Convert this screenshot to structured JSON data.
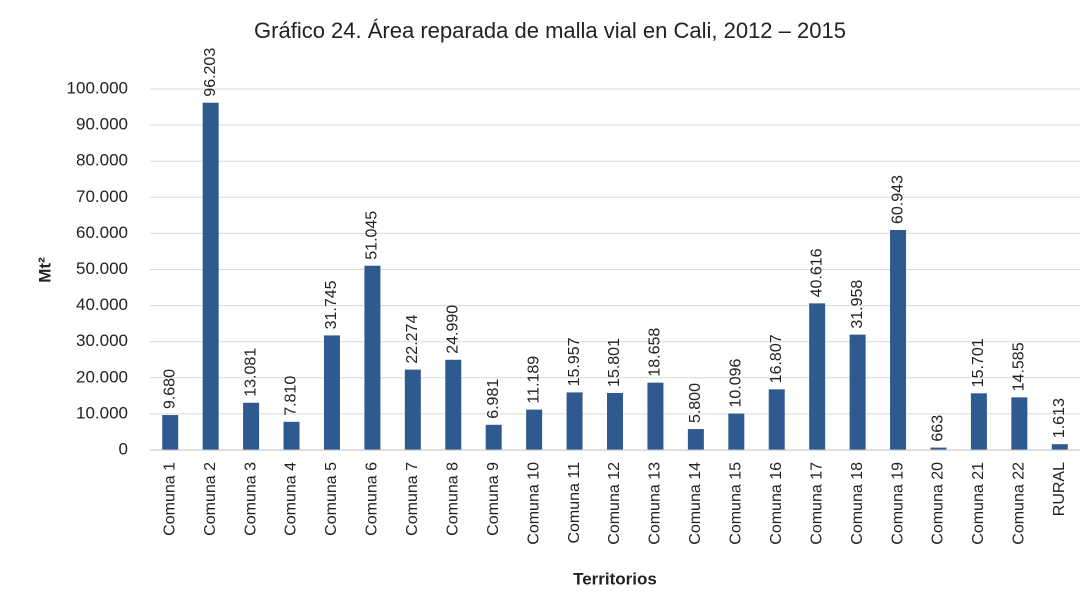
{
  "chart_data": {
    "type": "bar",
    "title": "Gráfico 24. Área reparada de malla vial en Cali, 2012 – 2015",
    "x_label": "Territorios",
    "y_label": "Mt²",
    "categories": [
      "Comuna 1",
      "Comuna 2",
      "Comuna 3",
      "Comuna 4",
      "Comuna 5",
      "Comuna 6",
      "Comuna 7",
      "Comuna 8",
      "Comuna 9",
      "Comuna 10",
      "Comuna 11",
      "Comuna 12",
      "Comuna 13",
      "Comuna 14",
      "Comuna 15",
      "Comuna 16",
      "Comuna 17",
      "Comuna 18",
      "Comuna 19",
      "Comuna 20",
      "Comuna 21",
      "Comuna 22",
      "RURAL"
    ],
    "values": [
      9680,
      96203,
      13081,
      7810,
      31745,
      51045,
      22274,
      24990,
      6981,
      11189,
      15957,
      15801,
      18658,
      5800,
      10096,
      16807,
      40616,
      31958,
      60943,
      663,
      15701,
      14585,
      1613
    ],
    "value_labels": [
      "9.680",
      "96.203",
      "13.081",
      "7.810",
      "31.745",
      "51.045",
      "22.274",
      "24.990",
      "6.981",
      "11.189",
      "15.957",
      "15.801",
      "18.658",
      "5.800",
      "10.096",
      "16.807",
      "40.616",
      "31.958",
      "60.943",
      "663",
      "15.701",
      "14.585",
      "1.613"
    ],
    "color": "#2f5a8f",
    "ylim": [
      0,
      100000
    ],
    "yticks": [
      0,
      {
        "value": 10000,
        "label": "10.000"
      },
      {
        "value": 20000,
        "label": "20.000"
      },
      {
        "value": 30000,
        "label": "30.000"
      },
      {
        "value": 40000,
        "label": "40.000"
      },
      {
        "value": 50000,
        "label": "50.000"
      },
      {
        "value": 60000,
        "label": "60.000"
      },
      {
        "value": 70000,
        "label": "70.000"
      },
      {
        "value": 80000,
        "label": "80.000"
      },
      {
        "value": 90000,
        "label": "90.000"
      },
      {
        "value": 100000,
        "label": "100.000"
      }
    ],
    "grid": true
  }
}
